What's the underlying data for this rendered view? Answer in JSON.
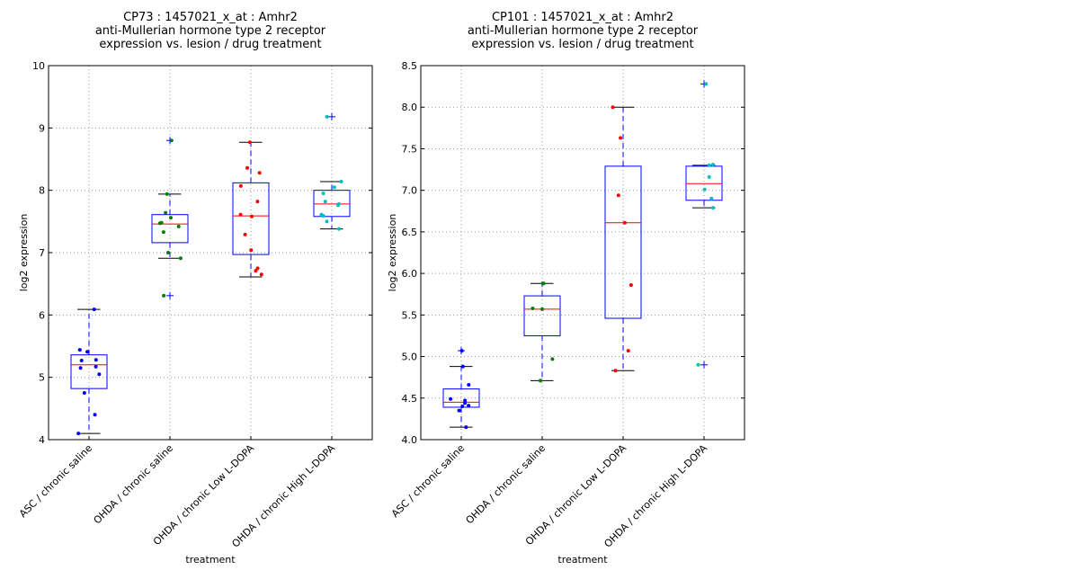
{
  "chart_data": [
    {
      "type": "box",
      "title": [
        "CP73 : 1457021_x_at : Amhr2",
        "anti-Mullerian hormone type 2 receptor",
        " expression vs. lesion / drug treatment"
      ],
      "xlabel": "treatment",
      "ylabel": "log2 expression",
      "ylim": [
        4,
        10
      ],
      "yticks": [
        4,
        5,
        6,
        7,
        8,
        9,
        10
      ],
      "ytick_labels": [
        "4",
        "5",
        "6",
        "7",
        "8",
        "9",
        "10"
      ],
      "grid": true,
      "categories": [
        "ASC / chronic saline",
        "OHDA / chronic saline",
        "OHDA / chronic Low L-DOPA",
        "OHDA / chronic High L-DOPA"
      ],
      "point_colors": [
        "#0000ff",
        "#008000",
        "#ff0000",
        "#00bfbf"
      ],
      "series": [
        {
          "name": "ASC / chronic saline",
          "whisker_low": 4.1,
          "q1": 4.82,
          "median": 5.2,
          "q3": 5.36,
          "whisker_high": 6.09,
          "outliers": [],
          "points": [
            6.09,
            5.44,
            5.41,
            5.28,
            5.27,
            5.17,
            5.15,
            5.05,
            4.75,
            4.4,
            4.1
          ]
        },
        {
          "name": "OHDA / chronic saline",
          "whisker_low": 6.91,
          "q1": 7.16,
          "median": 7.46,
          "q3": 7.61,
          "whisker_high": 7.94,
          "outliers": [
            8.8,
            6.31
          ],
          "points": [
            8.8,
            7.94,
            7.64,
            7.56,
            7.48,
            7.47,
            7.42,
            7.33,
            7.0,
            6.91,
            6.31
          ]
        },
        {
          "name": "OHDA / chronic Low L-DOPA",
          "whisker_low": 6.61,
          "q1": 6.97,
          "median": 7.59,
          "q3": 8.12,
          "whisker_high": 8.77,
          "outliers": [],
          "points": [
            8.77,
            8.36,
            8.28,
            8.07,
            7.82,
            7.61,
            7.58,
            7.29,
            7.04,
            6.75,
            6.71,
            6.65
          ]
        },
        {
          "name": "OHDA / chronic High L-DOPA",
          "whisker_low": 7.38,
          "q1": 7.58,
          "median": 7.78,
          "q3": 8.0,
          "whisker_high": 8.14,
          "outliers": [
            9.18
          ],
          "points": [
            9.18,
            8.14,
            8.05,
            7.95,
            7.82,
            7.78,
            7.76,
            7.61,
            7.59,
            7.5,
            7.38
          ]
        }
      ]
    },
    {
      "type": "box",
      "title": [
        "CP101 : 1457021_x_at : Amhr2",
        "anti-Mullerian hormone type 2 receptor",
        " expression vs. lesion / drug treatment"
      ],
      "xlabel": "treatment",
      "ylabel": "log2 expression",
      "ylim": [
        4.0,
        8.5
      ],
      "yticks": [
        4.0,
        4.5,
        5.0,
        5.5,
        6.0,
        6.5,
        7.0,
        7.5,
        8.0,
        8.5
      ],
      "ytick_labels": [
        "4.0",
        "4.5",
        "5.0",
        "5.5",
        "6.0",
        "6.5",
        "7.0",
        "7.5",
        "8.0",
        "8.5"
      ],
      "grid": true,
      "categories": [
        "ASC / chronic saline",
        "OHDA / chronic saline",
        "OHDA / chronic Low L-DOPA",
        "OHDA / chronic High L-DOPA"
      ],
      "point_colors": [
        "#0000ff",
        "#008000",
        "#ff0000",
        "#00bfbf"
      ],
      "series": [
        {
          "name": "ASC / chronic saline",
          "whisker_low": 4.15,
          "q1": 4.39,
          "median": 4.45,
          "q3": 4.61,
          "whisker_high": 4.88,
          "outliers": [
            5.07
          ],
          "points": [
            5.07,
            4.88,
            4.66,
            4.49,
            4.47,
            4.44,
            4.41,
            4.4,
            4.35,
            4.15
          ]
        },
        {
          "name": "OHDA / chronic saline",
          "whisker_low": 4.71,
          "q1": 5.25,
          "median": 5.57,
          "q3": 5.73,
          "whisker_high": 5.88,
          "outliers": [],
          "points": [
            5.88,
            5.88,
            5.58,
            5.57,
            4.97,
            4.71
          ]
        },
        {
          "name": "OHDA / chronic Low L-DOPA",
          "whisker_low": 4.83,
          "q1": 5.46,
          "median": 6.61,
          "q3": 7.29,
          "whisker_high": 8.0,
          "outliers": [],
          "points": [
            8.0,
            7.63,
            6.94,
            6.61,
            5.86,
            5.07,
            4.83
          ]
        },
        {
          "name": "OHDA / chronic High L-DOPA",
          "whisker_low": 6.79,
          "q1": 6.88,
          "median": 7.08,
          "q3": 7.29,
          "whisker_high": 7.3,
          "outliers": [
            8.28,
            4.9
          ],
          "points": [
            8.28,
            7.31,
            7.3,
            7.16,
            7.01,
            6.9,
            6.79,
            4.9
          ]
        }
      ]
    }
  ]
}
